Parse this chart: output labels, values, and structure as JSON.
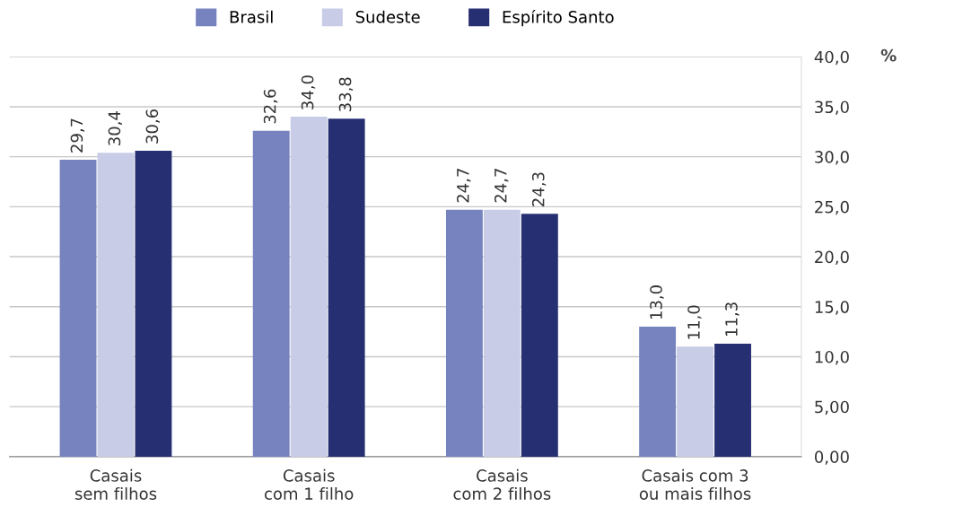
{
  "chart_data": {
    "type": "bar",
    "ylabel": "%",
    "categories": [
      "Casais\nsem filhos",
      "Casais\ncom 1 filho",
      "Casais\ncom 2 filhos",
      "Casais com 3\nou mais filhos"
    ],
    "series": [
      {
        "name": "Brasil",
        "color": "#7683bf",
        "values": [
          29.7,
          32.6,
          24.7,
          13.0
        ],
        "value_labels": [
          "29,7",
          "32,6",
          "24,7",
          "13,0"
        ]
      },
      {
        "name": "Sudeste",
        "color": "#c8cce6",
        "values": [
          30.4,
          34.0,
          24.7,
          11.0
        ],
        "value_labels": [
          "30,4",
          "34,0",
          "24,7",
          "11,0"
        ]
      },
      {
        "name": "Espírito Santo",
        "color": "#262f72",
        "values": [
          30.6,
          33.8,
          24.3,
          11.3
        ],
        "value_labels": [
          "30,6",
          "33,8",
          "24,3",
          "11,3"
        ]
      }
    ],
    "ylim": [
      0,
      40
    ],
    "yticks": [
      {
        "value": 0,
        "label": "0,00"
      },
      {
        "value": 5,
        "label": "5,00"
      },
      {
        "value": 10,
        "label": "10,0"
      },
      {
        "value": 15,
        "label": "15,0"
      },
      {
        "value": 20,
        "label": "20,0"
      },
      {
        "value": 25,
        "label": "25,0"
      },
      {
        "value": 30,
        "label": "30,0"
      },
      {
        "value": 35,
        "label": "35,0"
      },
      {
        "value": 40,
        "label": "40,0"
      }
    ],
    "grid": "y",
    "legend": "top"
  }
}
